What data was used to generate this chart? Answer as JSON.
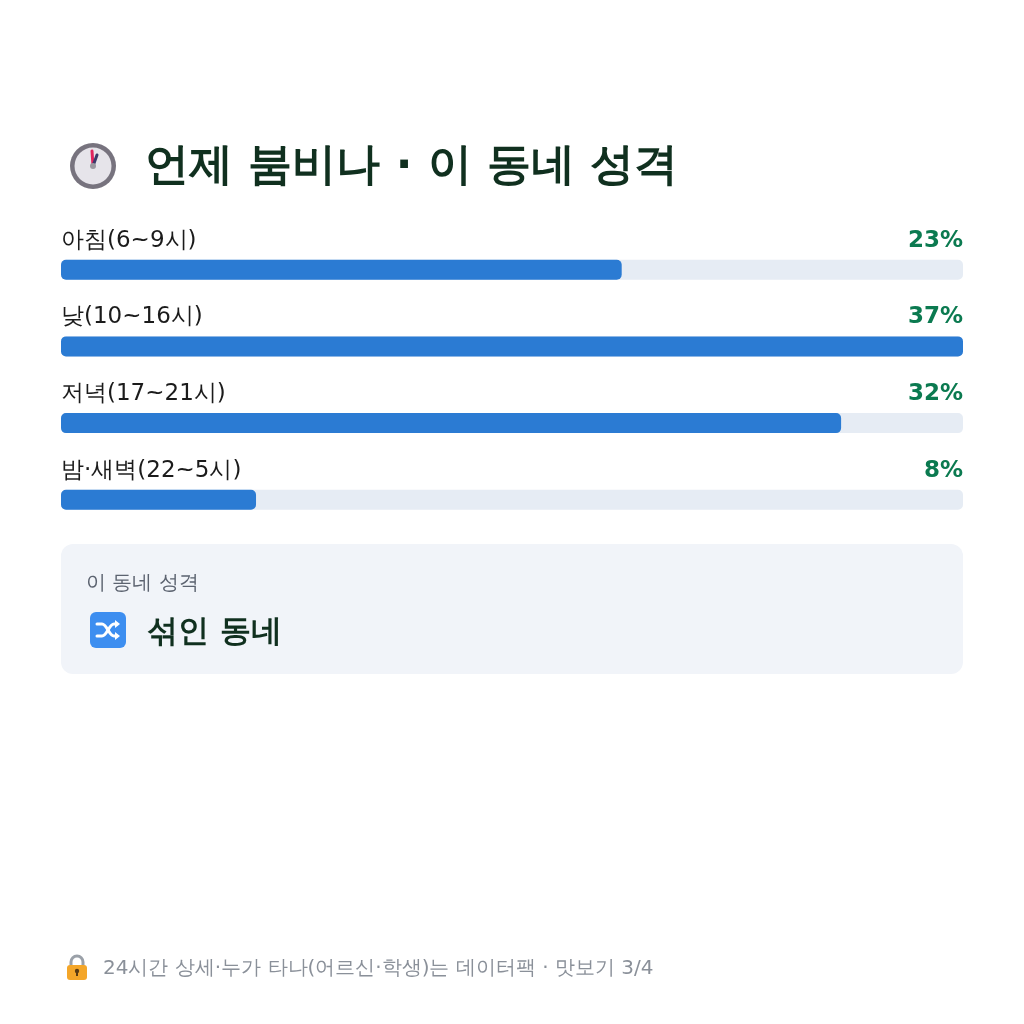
{
  "chart_data": {
    "type": "bar",
    "orientation": "horizontal",
    "title": "언제 붐비나 · 이 동네 성격",
    "categories": [
      "아침(6~9시)",
      "낮(10~16시)",
      "저녁(17~21시)",
      "밤·새벽(22~5시)"
    ],
    "values": [
      23,
      37,
      32,
      8
    ],
    "color": "#2b7bd3",
    "value_labels": [
      "23%",
      "37%",
      "32%",
      "8%"
    ],
    "annotations": [
      "이 동네 성격",
      "섞인 동네",
      "24시간 상세·누가 타나(어르신·학생)는 데이터팩 · 맛보기 3/4"
    ]
  }
}
